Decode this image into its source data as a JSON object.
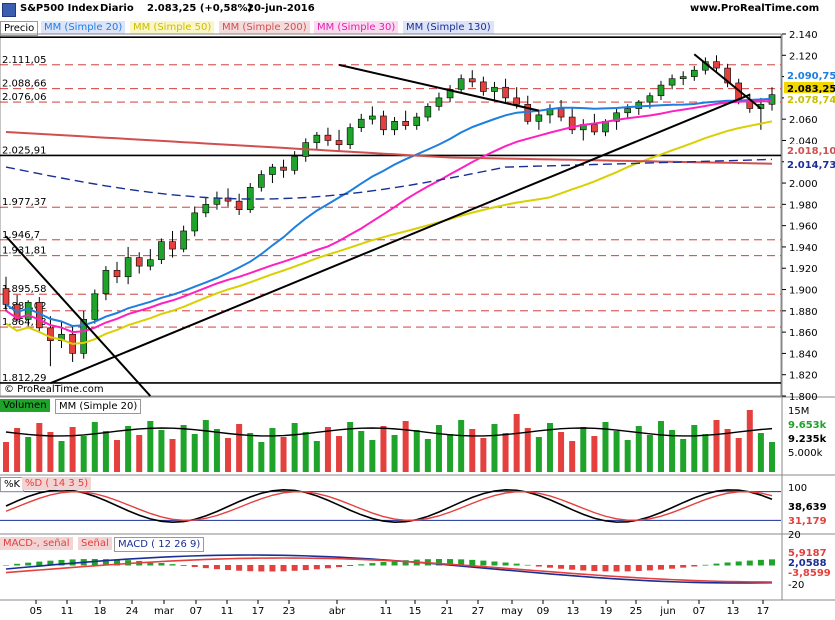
{
  "header": {
    "icon": "chart-menu-icon",
    "symbol": "S&P500 Index",
    "period": "Diario",
    "price_change": "2.083,25 (+0,58%)",
    "date": "20-jun-2016",
    "site": "www.ProRealTime.com"
  },
  "colors": {
    "up": "#1fa32a",
    "down": "#e3403e",
    "ma20": "#1e7fe0",
    "ma50": "#d8d000",
    "ma200": "#d05050",
    "ma30": "#ff20c0",
    "ma130": "#1a2f96",
    "grid": "#cc2222",
    "vol": "#1fa32a",
    "vold": "#e3403e"
  },
  "main_panel": {
    "price_label": "Precio",
    "watermark": "© ProRealTime.com",
    "legend": [
      {
        "label": "MM (Simple 20)",
        "color": "#1e7fe0"
      },
      {
        "label": "MM (Simple 50)",
        "color": "#c8c000"
      },
      {
        "label": "MM (Simple 200)",
        "color": "#d05050"
      },
      {
        "label": "MM (Simple 30)",
        "color": "#e020b0"
      },
      {
        "label": "MM (Simple 130)",
        "color": "#1a2f96"
      }
    ],
    "horizontal_levels": [
      "2.111,05",
      "2.088,66",
      "2.076,06",
      "2.025,91",
      "1.977,37",
      "1.946,7",
      "1.931,81",
      "1.895,58",
      "1.880,02",
      "1.864,78",
      "1.812,29"
    ],
    "price_ticks": [
      "2.140",
      "2.120",
      "2.100",
      "2.080",
      "2.060",
      "2.040",
      "2.020",
      "2.000",
      "1.980",
      "1.960",
      "1.940",
      "1.920",
      "1.900",
      "1.880",
      "1.860",
      "1.840",
      "1.820",
      "1.800"
    ],
    "current_tags": [
      {
        "value": "2.090,75",
        "color": "#1e7fe0"
      },
      {
        "value": "2.083,25",
        "color": "#000000"
      },
      {
        "value": "2.078,74",
        "color": "#c8c000"
      },
      {
        "value": "2.018,10",
        "color": "#d05050"
      },
      {
        "value": "2.014,73",
        "color": "#1a2f96"
      }
    ]
  },
  "volume_panel": {
    "label": "Volumen",
    "ma_label": "MM (Simple 20)",
    "ticks": [
      "15M",
      "5.000k"
    ],
    "tags": [
      {
        "value": "9.653k",
        "color": "#1fa32a"
      },
      {
        "value": "9.235k",
        "color": "#000000"
      }
    ]
  },
  "stoch_panel": {
    "k_label": "%K",
    "d_label": "%D ( 14 3 5)",
    "ticks": [
      "100",
      "0"
    ],
    "tags": [
      {
        "value": "38,639",
        "color": "#000000"
      },
      {
        "value": "31,179",
        "color": "#e3403e"
      }
    ]
  },
  "macd_panel": {
    "label_a": "MACD-, señal",
    "label_b": "Señal",
    "label_c": "MACD ( 12 26 9)",
    "ticks": [
      "20",
      "-20"
    ],
    "tags": [
      {
        "value": "5,9187",
        "color": "#e3403e"
      },
      {
        "value": "2,0588",
        "color": "#1a2f96"
      },
      {
        "value": "-3,8599",
        "color": "#e3403e"
      }
    ]
  },
  "x_labels": [
    "05",
    "11",
    "18",
    "24",
    "mar",
    "07",
    "11",
    "17",
    "23",
    "abr",
    "11",
    "15",
    "21",
    "27",
    "may",
    "09",
    "13",
    "19",
    "25",
    "jun",
    "07",
    "13",
    "17"
  ],
  "chart_data": {
    "type": "line",
    "title": "S&P500 Index Diario",
    "y_range": [
      1800,
      2140
    ],
    "candles": [
      [
        1901,
        1912,
        1880,
        1886
      ],
      [
        1886,
        1895,
        1870,
        1872
      ],
      [
        1872,
        1890,
        1865,
        1888
      ],
      [
        1888,
        1893,
        1860,
        1864
      ],
      [
        1864,
        1875,
        1828,
        1852
      ],
      [
        1852,
        1870,
        1845,
        1858
      ],
      [
        1858,
        1866,
        1832,
        1840
      ],
      [
        1840,
        1880,
        1835,
        1872
      ],
      [
        1872,
        1900,
        1868,
        1896
      ],
      [
        1896,
        1922,
        1890,
        1918
      ],
      [
        1918,
        1926,
        1906,
        1912
      ],
      [
        1912,
        1940,
        1905,
        1930
      ],
      [
        1930,
        1935,
        1915,
        1922
      ],
      [
        1922,
        1938,
        1918,
        1928
      ],
      [
        1928,
        1948,
        1924,
        1945
      ],
      [
        1945,
        1955,
        1930,
        1938
      ],
      [
        1938,
        1960,
        1935,
        1955
      ],
      [
        1955,
        1978,
        1950,
        1972
      ],
      [
        1972,
        1986,
        1968,
        1980
      ],
      [
        1980,
        1992,
        1975,
        1986
      ],
      [
        1986,
        1995,
        1978,
        1983
      ],
      [
        1983,
        1990,
        1970,
        1975
      ],
      [
        1975,
        2000,
        1972,
        1996
      ],
      [
        1996,
        2012,
        1992,
        2008
      ],
      [
        2008,
        2018,
        2000,
        2015
      ],
      [
        2015,
        2022,
        2005,
        2012
      ],
      [
        2012,
        2030,
        2008,
        2025
      ],
      [
        2025,
        2042,
        2020,
        2038
      ],
      [
        2038,
        2048,
        2032,
        2045
      ],
      [
        2045,
        2052,
        2035,
        2040
      ],
      [
        2040,
        2050,
        2030,
        2036
      ],
      [
        2036,
        2056,
        2032,
        2052
      ],
      [
        2052,
        2065,
        2048,
        2060
      ],
      [
        2060,
        2072,
        2055,
        2063
      ],
      [
        2063,
        2068,
        2045,
        2050
      ],
      [
        2050,
        2062,
        2045,
        2058
      ],
      [
        2058,
        2068,
        2050,
        2054
      ],
      [
        2054,
        2066,
        2050,
        2062
      ],
      [
        2062,
        2075,
        2058,
        2072
      ],
      [
        2072,
        2085,
        2068,
        2080
      ],
      [
        2080,
        2092,
        2076,
        2088
      ],
      [
        2088,
        2102,
        2084,
        2098
      ],
      [
        2098,
        2106,
        2090,
        2095
      ],
      [
        2095,
        2100,
        2082,
        2086
      ],
      [
        2086,
        2095,
        2078,
        2090
      ],
      [
        2090,
        2098,
        2076,
        2080
      ],
      [
        2080,
        2090,
        2070,
        2074
      ],
      [
        2074,
        2082,
        2055,
        2058
      ],
      [
        2058,
        2068,
        2050,
        2064
      ],
      [
        2064,
        2074,
        2056,
        2070
      ],
      [
        2070,
        2078,
        2058,
        2062
      ],
      [
        2062,
        2070,
        2046,
        2050
      ],
      [
        2050,
        2060,
        2040,
        2055
      ],
      [
        2055,
        2065,
        2045,
        2048
      ],
      [
        2048,
        2060,
        2044,
        2058
      ],
      [
        2058,
        2070,
        2050,
        2066
      ],
      [
        2066,
        2074,
        2060,
        2070
      ],
      [
        2070,
        2078,
        2064,
        2076
      ],
      [
        2076,
        2085,
        2070,
        2082
      ],
      [
        2082,
        2096,
        2078,
        2092
      ],
      [
        2092,
        2102,
        2088,
        2098
      ],
      [
        2098,
        2105,
        2092,
        2100
      ],
      [
        2100,
        2110,
        2096,
        2106
      ],
      [
        2106,
        2118,
        2102,
        2114
      ],
      [
        2114,
        2120,
        2104,
        2108
      ],
      [
        2108,
        2112,
        2090,
        2094
      ],
      [
        2094,
        2098,
        2074,
        2078
      ],
      [
        2078,
        2084,
        2066,
        2070
      ],
      [
        2070,
        2080,
        2050,
        2074
      ],
      [
        2074,
        2090,
        2068,
        2083
      ]
    ],
    "series": [
      {
        "name": "MM (Simple 20)"
      },
      {
        "name": "MM (Simple 50)"
      },
      {
        "name": "MM (Simple 200)"
      },
      {
        "name": "MM (Simple 30)"
      },
      {
        "name": "MM (Simple 130)"
      }
    ]
  }
}
